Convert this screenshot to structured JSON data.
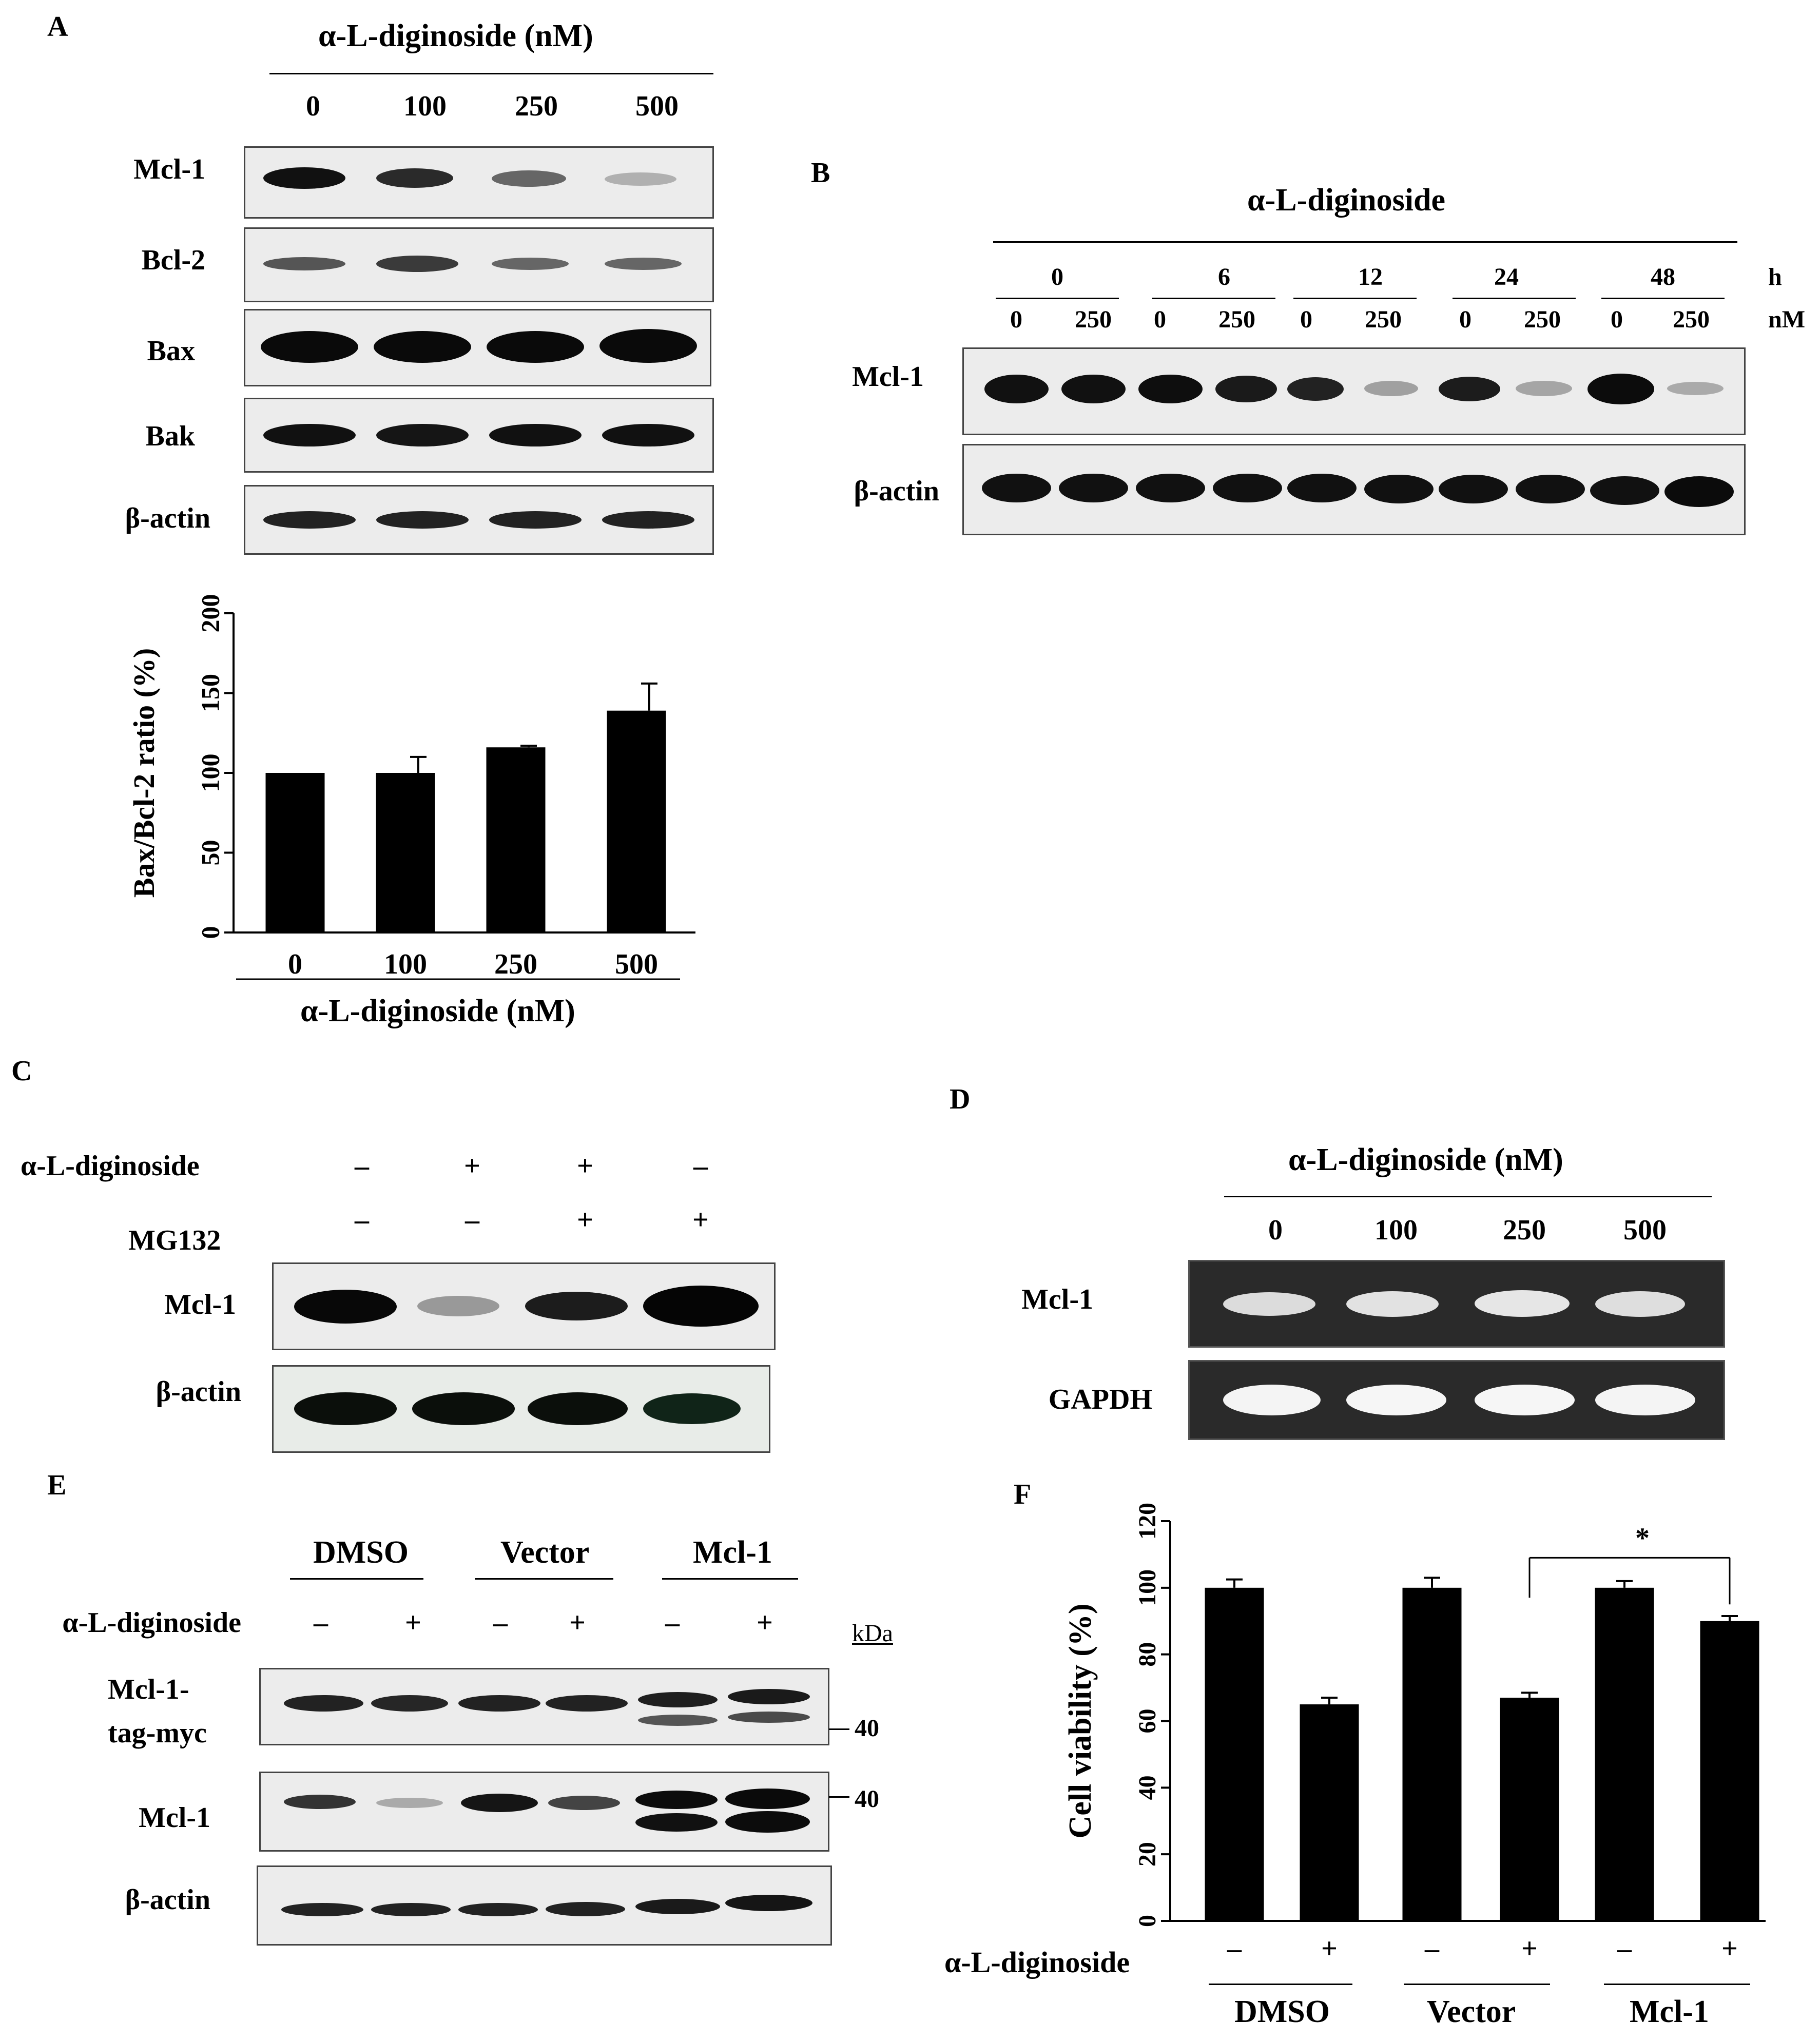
{
  "panels": {
    "A": {
      "label": "A",
      "header": "α-L-diginoside (nM)",
      "lanes": [
        "0",
        "100",
        "250",
        "500"
      ],
      "rows": [
        "Mcl-1",
        "Bcl-2",
        "Bax",
        "Bak",
        "β-actin"
      ]
    },
    "B": {
      "label": "B",
      "header": "α-L-diginoside",
      "times": [
        "0",
        "6",
        "12",
        "24",
        "48"
      ],
      "time_unit": "h",
      "doses": [
        "0",
        "250"
      ],
      "dose_unit": "nM",
      "rows": [
        "Mcl-1",
        "β-actin"
      ]
    },
    "C": {
      "label": "C",
      "treatments": [
        {
          "name": "α-L-diginoside",
          "values": [
            "–",
            "+",
            "+",
            "–"
          ]
        },
        {
          "name": "MG132",
          "values": [
            "–",
            "–",
            "+",
            "+"
          ]
        }
      ],
      "rows": [
        "Mcl-1",
        "β-actin"
      ]
    },
    "D": {
      "label": "D",
      "header": "α-L-diginoside (nM)",
      "lanes": [
        "0",
        "100",
        "250",
        "500"
      ],
      "rows": [
        "Mcl-1",
        "GAPDH"
      ]
    },
    "E": {
      "label": "E",
      "groups": [
        "DMSO",
        "Vector",
        "Mcl-1"
      ],
      "treatment": "α-L-diginoside",
      "signs": [
        "–",
        "+",
        "–",
        "+",
        "–",
        "+"
      ],
      "kda_label": "kDa",
      "marker": "40",
      "rows": [
        "Mcl-1-",
        "tag-myc",
        "Mcl-1",
        "β-actin"
      ]
    },
    "F": {
      "label": "F",
      "treatment": "α-L-diginoside",
      "signs": [
        "–",
        "+",
        "–",
        "+",
        "–",
        "+"
      ],
      "groups": [
        "DMSO",
        "Vector",
        "Mcl-1"
      ],
      "significance": "*"
    }
  },
  "chart_data": [
    {
      "type": "bar",
      "panel": "A",
      "categories": [
        "0",
        "100",
        "250",
        "500"
      ],
      "values": [
        100,
        100,
        116,
        139
      ],
      "errors": [
        0,
        10,
        1,
        17
      ],
      "ylabel": "Bax/Bcl-2 ratio (%)",
      "xlabel": "α-L-diginoside (nM)",
      "ylim": [
        0,
        200
      ],
      "yticks": [
        "0",
        "50",
        "100",
        "150",
        "200"
      ],
      "color": "#000000"
    },
    {
      "type": "bar",
      "panel": "F",
      "categories": [
        "DMSO –",
        "DMSO +",
        "Vector –",
        "Vector +",
        "Mcl-1 –",
        "Mcl-1 +"
      ],
      "values": [
        100,
        65,
        100,
        67,
        100,
        90
      ],
      "errors": [
        2.5,
        2,
        3,
        1.5,
        2,
        1.5
      ],
      "ylabel": "Cell viability (%)",
      "ylim": [
        0,
        120
      ],
      "yticks": [
        "0",
        "20",
        "40",
        "60",
        "80",
        "100",
        "120"
      ],
      "color": "#000000"
    }
  ]
}
